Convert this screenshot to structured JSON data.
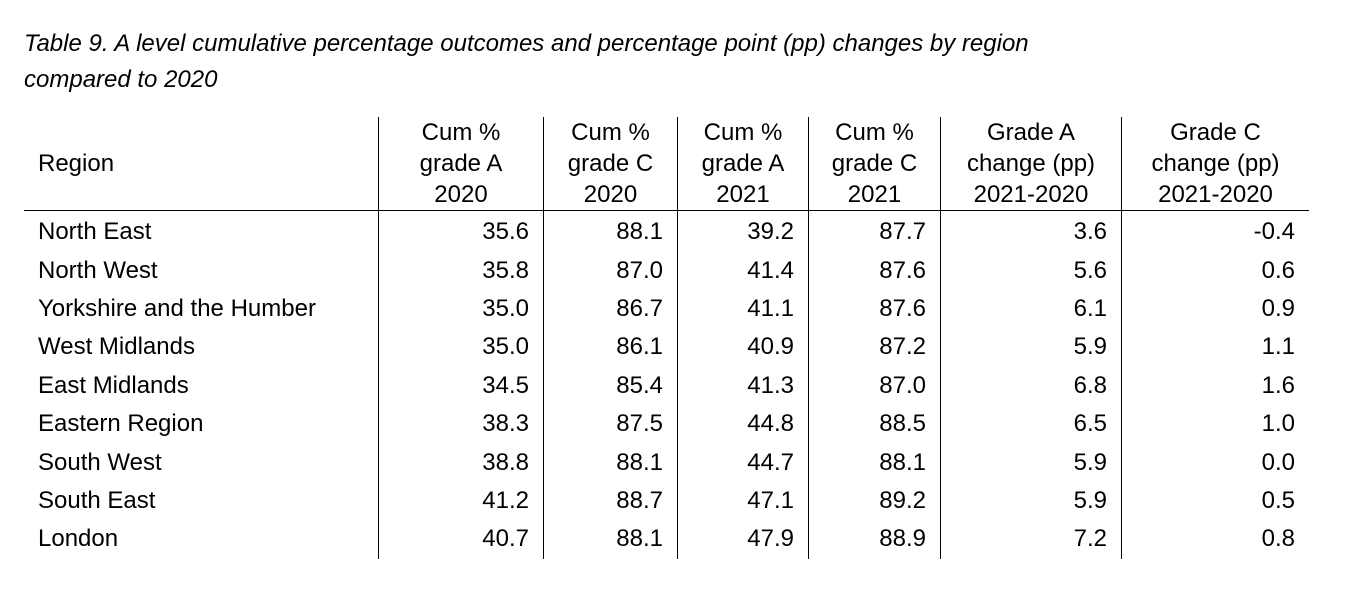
{
  "caption": {
    "line1": "Table 9. A level cumulative percentage outcomes and percentage point (pp) changes by region",
    "line2": "compared to 2020"
  },
  "table": {
    "headers": [
      {
        "lines": [
          "Region"
        ]
      },
      {
        "lines": [
          "Cum %",
          "grade A",
          "2020"
        ]
      },
      {
        "lines": [
          "Cum %",
          "grade C",
          "2020"
        ]
      },
      {
        "lines": [
          "Cum %",
          "grade A",
          "2021"
        ]
      },
      {
        "lines": [
          "Cum %",
          "grade C",
          "2021"
        ]
      },
      {
        "lines": [
          "Grade A",
          "change (pp)",
          "2021-2020"
        ]
      },
      {
        "lines": [
          "Grade C",
          "change (pp)",
          "2021-2020"
        ]
      }
    ],
    "rows": [
      [
        "North East",
        "35.6",
        "88.1",
        "39.2",
        "87.7",
        "3.6",
        "-0.4"
      ],
      [
        "North West",
        "35.8",
        "87.0",
        "41.4",
        "87.6",
        "5.6",
        "0.6"
      ],
      [
        "Yorkshire and the Humber",
        "35.0",
        "86.7",
        "41.1",
        "87.6",
        "6.1",
        "0.9"
      ],
      [
        "West Midlands",
        "35.0",
        "86.1",
        "40.9",
        "87.2",
        "5.9",
        "1.1"
      ],
      [
        "East Midlands",
        "34.5",
        "85.4",
        "41.3",
        "87.0",
        "6.8",
        "1.6"
      ],
      [
        "Eastern Region",
        "38.3",
        "87.5",
        "44.8",
        "88.5",
        "6.5",
        "1.0"
      ],
      [
        "South West",
        "38.8",
        "88.1",
        "44.7",
        "88.1",
        "5.9",
        "0.0"
      ],
      [
        "South East",
        "41.2",
        "88.7",
        "47.1",
        "89.2",
        "5.9",
        "0.5"
      ],
      [
        "London",
        "40.7",
        "88.1",
        "47.9",
        "88.9",
        "7.2",
        "0.8"
      ]
    ]
  }
}
